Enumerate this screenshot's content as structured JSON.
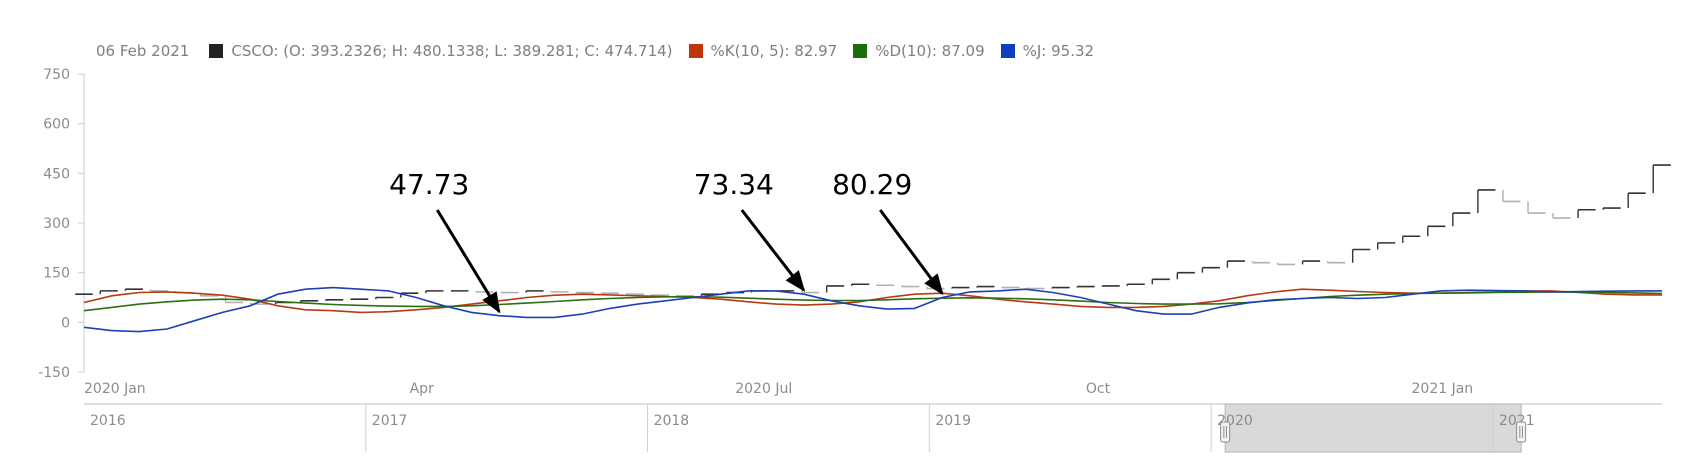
{
  "legend": {
    "date": "06 Feb 2021",
    "ohlc_text": "CSCO: (O: 393.2326; H: 480.1338; L: 389.281; C: 474.714)",
    "k_text": "%K(10, 5): 82.97",
    "d_text": "%D(10): 87.09",
    "j_text": "%J: 95.32"
  },
  "colors": {
    "ohlc": "#333333",
    "ohlc_down": "#b0b0b0",
    "k": "#b83a14",
    "d": "#2e6e12",
    "j": "#1f3fb5",
    "axis": "#cccccc",
    "navigator_fill": "#d9d9d9"
  },
  "chart_data": {
    "type": "line",
    "ylim": [
      -150,
      750
    ],
    "y_ticks": [
      "750",
      "600",
      "450",
      "300",
      "150",
      "0",
      "-150"
    ],
    "y_tick_values": [
      750,
      600,
      450,
      300,
      150,
      0,
      -150
    ],
    "x_ticks": [
      {
        "label": "2020 Jan",
        "index": 0
      },
      {
        "label": "Apr",
        "index": 13
      },
      {
        "label": "2020 Jul",
        "index": 26
      },
      {
        "label": "Oct",
        "index": 40
      },
      {
        "label": "2021 Jan",
        "index": 53
      }
    ],
    "ohlc_close": [
      85,
      95,
      100,
      95,
      90,
      80,
      60,
      55,
      60,
      65,
      68,
      70,
      75,
      88,
      95,
      95,
      92,
      90,
      95,
      92,
      90,
      88,
      85,
      82,
      80,
      85,
      90,
      95,
      95,
      90,
      110,
      115,
      112,
      108,
      102,
      105,
      108,
      105,
      102,
      105,
      108,
      110,
      115,
      130,
      150,
      165,
      185,
      180,
      175,
      185,
      180,
      220,
      240,
      260,
      290,
      330,
      400,
      365,
      330,
      315,
      340,
      345,
      390,
      475
    ],
    "series": [
      {
        "name": "%K(10, 5)",
        "values": [
          60,
          80,
          90,
          92,
          88,
          82,
          70,
          50,
          38,
          35,
          30,
          32,
          38,
          45,
          55,
          65,
          75,
          82,
          85,
          83,
          80,
          78,
          75,
          70,
          62,
          55,
          52,
          55,
          62,
          75,
          85,
          88,
          80,
          70,
          62,
          55,
          48,
          45,
          45,
          48,
          55,
          65,
          80,
          92,
          100,
          97,
          93,
          90,
          88,
          88,
          90,
          92,
          95,
          95,
          90,
          85,
          83,
          83
        ]
      },
      {
        "name": "%D(10)",
        "values": [
          35,
          45,
          55,
          62,
          67,
          70,
          68,
          63,
          58,
          54,
          51,
          49,
          48,
          48,
          50,
          54,
          58,
          63,
          68,
          72,
          75,
          77,
          77,
          76,
          73,
          70,
          67,
          66,
          66,
          68,
          71,
          73,
          74,
          73,
          71,
          68,
          64,
          60,
          57,
          55,
          55,
          56,
          60,
          66,
          72,
          78,
          82,
          85,
          87,
          88,
          89,
          90,
          91,
          92,
          91,
          90,
          89,
          87
        ]
      },
      {
        "name": "%J",
        "values": [
          -15,
          -25,
          -28,
          -20,
          5,
          30,
          50,
          85,
          100,
          105,
          100,
          95,
          75,
          50,
          30,
          20,
          15,
          15,
          25,
          42,
          55,
          65,
          75,
          85,
          95,
          95,
          85,
          65,
          50,
          40,
          42,
          75,
          92,
          95,
          100,
          90,
          75,
          55,
          35,
          25,
          25,
          45,
          58,
          68,
          72,
          75,
          72,
          75,
          85,
          95,
          97,
          96,
          95,
          92,
          93,
          94,
          95,
          95
        ]
      }
    ],
    "annotations": [
      {
        "text": "47.73",
        "index": 15
      },
      {
        "text": "73.34",
        "index": 26
      },
      {
        "text": "80.29",
        "index": 31
      }
    ],
    "navigator": {
      "labels": [
        "2016",
        "2017",
        "2018",
        "2019",
        "2020",
        "2021"
      ],
      "label_years": [
        2016,
        2017,
        2018,
        2019,
        2020,
        2021
      ],
      "year_span": [
        2016,
        2021.6
      ],
      "selection_years": [
        2020,
        2021.1
      ]
    }
  }
}
